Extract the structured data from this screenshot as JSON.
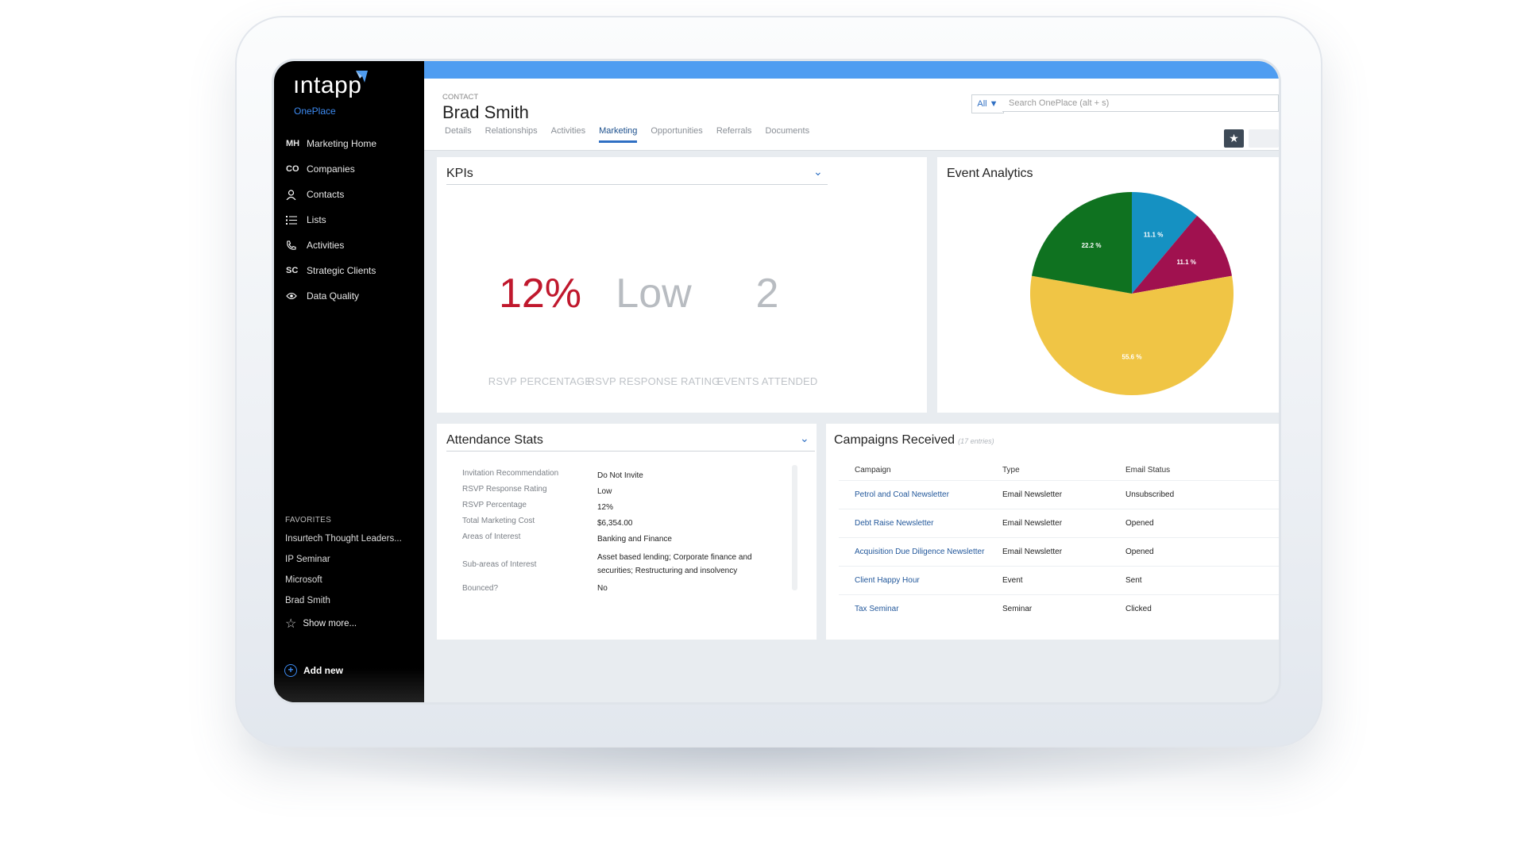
{
  "brand": {
    "logo": "ıntapp",
    "product": "OnePlace"
  },
  "nav": [
    {
      "abbr": "MH",
      "label": "Marketing Home",
      "icon": ""
    },
    {
      "abbr": "CO",
      "label": "Companies",
      "icon": ""
    },
    {
      "abbr": "",
      "label": "Contacts",
      "icon": "person-icon"
    },
    {
      "abbr": "",
      "label": "Lists",
      "icon": "list-icon"
    },
    {
      "abbr": "",
      "label": "Activities",
      "icon": "phone-icon"
    },
    {
      "abbr": "SC",
      "label": "Strategic Clients",
      "icon": ""
    },
    {
      "abbr": "",
      "label": "Data Quality",
      "icon": "eye-icon"
    }
  ],
  "favorites": {
    "heading": "FAVORITES",
    "items": [
      "Insurtech Thought Leaders...",
      "IP Seminar",
      "Microsoft",
      "Brad Smith"
    ],
    "show_more": "Show more..."
  },
  "add_new": "Add new",
  "header": {
    "kind": "CONTACT",
    "title": "Brad Smith",
    "tabs": [
      "Details",
      "Relationships",
      "Activities",
      "Marketing",
      "Opportunities",
      "Referrals",
      "Documents"
    ],
    "active_tab": "Marketing",
    "scope": "All ▼",
    "search_placeholder": "Search OnePlace (alt + s)"
  },
  "kpis": {
    "title": "KPIs",
    "items": [
      {
        "value": "12%",
        "label": "RSVP PERCENTAGE",
        "color": "#c0182d"
      },
      {
        "value": "Low",
        "label": "RSVP RESPONSE RATING",
        "color": "#b8bcc1"
      },
      {
        "value": "2",
        "label": "EVENTS ATTENDED",
        "color": "#b8bcc1"
      }
    ]
  },
  "event_analytics": {
    "title": "Event Analytics"
  },
  "chart_data": {
    "type": "pie",
    "slices": [
      {
        "label": "11.1 %",
        "value": 11.1,
        "color": "#1591c2"
      },
      {
        "label": "11.1 %",
        "value": 11.1,
        "color": "#a0114f"
      },
      {
        "label": "55.6 %",
        "value": 55.6,
        "color": "#f0c545"
      },
      {
        "label": "22.2 %",
        "value": 22.2,
        "color": "#0f7220"
      }
    ]
  },
  "attendance": {
    "title": "Attendance Stats",
    "rows": [
      {
        "k": "Invitation Recommendation",
        "v": "Do Not Invite"
      },
      {
        "k": "RSVP Response Rating",
        "v": "Low"
      },
      {
        "k": "RSVP Percentage",
        "v": "12%"
      },
      {
        "k": "Total Marketing Cost",
        "v": "$6,354.00"
      },
      {
        "k": "Areas of Interest",
        "v": "Banking and Finance"
      },
      {
        "k": "Sub-areas of Interest",
        "v": "Asset based lending; Corporate finance and securities; Restructuring and insolvency"
      },
      {
        "k": "Bounced?",
        "v": "No"
      }
    ]
  },
  "campaigns": {
    "title": "Campaigns Received",
    "count": "(17 entries)",
    "headers": [
      "Campaign",
      "Type",
      "Email Status"
    ],
    "rows": [
      {
        "campaign": "Petrol and Coal Newsletter",
        "type": "Email Newsletter",
        "status": "Unsubscribed"
      },
      {
        "campaign": "Debt Raise Newsletter",
        "type": "Email Newsletter",
        "status": "Opened"
      },
      {
        "campaign": "Acquisition Due Diligence Newsletter",
        "type": "Email Newsletter",
        "status": "Opened"
      },
      {
        "campaign": "Client Happy Hour",
        "type": "Event",
        "status": "Sent"
      },
      {
        "campaign": "Tax Seminar",
        "type": "Seminar",
        "status": "Clicked"
      }
    ]
  }
}
